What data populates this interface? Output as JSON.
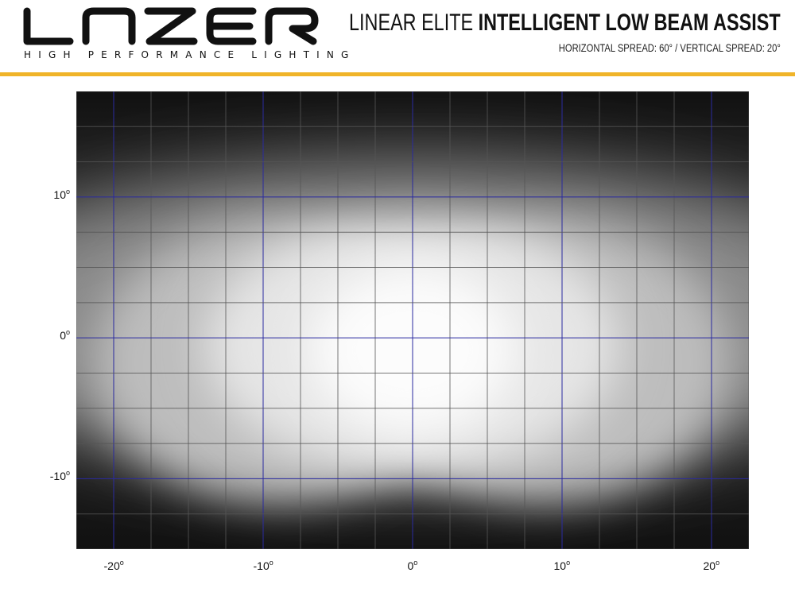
{
  "brand": {
    "logo_text": "LAZER",
    "tagline": "HIGH PERFORMANCE LIGHTING",
    "accent": "#f0b429"
  },
  "header": {
    "title_light": "LINEAR ELITE",
    "title_bold": "INTELLIGENT LOW BEAM ASSIST",
    "subtitle": "HORIZONTAL SPREAD: 60° / VERTICAL SPREAD: 20°"
  },
  "chart_data": {
    "type": "heatmap",
    "title": "",
    "xlim": [
      -22.5,
      22.5
    ],
    "ylim": [
      -15,
      17.5
    ],
    "x_ticks": [
      -20,
      -10,
      0,
      10,
      20
    ],
    "y_ticks": [
      10,
      0,
      -10
    ],
    "x_tick_labels": [
      "-20",
      "-10",
      "0",
      "10",
      "20"
    ],
    "y_tick_labels": [
      "10",
      "0",
      "-10"
    ],
    "tick_unit": "o",
    "major_grid_step": 10,
    "minor_grid_step": 2.5,
    "grid": true,
    "major_grid_color": "#2a2aa0",
    "minor_grid_color": "#555555",
    "beam": {
      "center": [
        0,
        0
      ],
      "horizontal_spread": 60,
      "vertical_spread": 20
    }
  }
}
